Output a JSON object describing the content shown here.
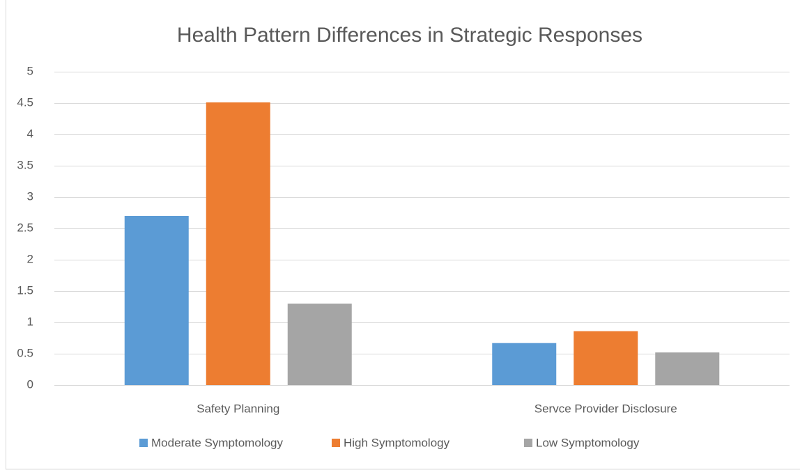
{
  "chart_data": {
    "type": "bar",
    "title": "Health Pattern Differences in Strategic Responses",
    "categories": [
      "Safety Planning",
      "Servce Provider Disclosure"
    ],
    "series": [
      {
        "name": "Moderate Symptomology",
        "color": "#5b9bd5",
        "values": [
          2.7,
          0.67
        ]
      },
      {
        "name": "High Symptomology",
        "color": "#ed7d31",
        "values": [
          4.51,
          0.86
        ]
      },
      {
        "name": "Low Symptomology",
        "color": "#a5a5a5",
        "values": [
          1.3,
          0.52
        ]
      }
    ],
    "ylim": [
      0,
      5
    ],
    "yticks": [
      0,
      0.5,
      1,
      1.5,
      2,
      2.5,
      3,
      3.5,
      4,
      4.5,
      5
    ],
    "grid": true,
    "legend": "bottom"
  }
}
